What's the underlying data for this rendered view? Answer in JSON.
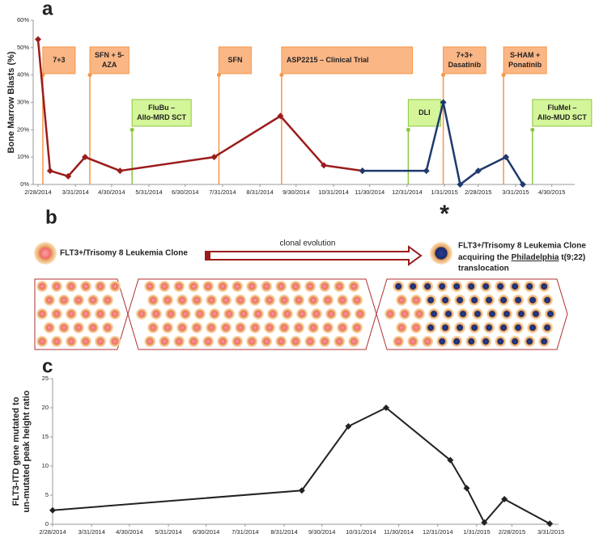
{
  "panel_labels": [
    "a",
    "b",
    "c"
  ],
  "chart_data": [
    {
      "type": "line",
      "ylabel": "Bone Marrow Blasts (%)",
      "xlim": [
        "2/24/2014",
        "5/19/2015"
      ],
      "xticks": [
        "2/28/2014",
        "3/31/2014",
        "4/30/2014",
        "5/31/2014",
        "6/30/2014",
        "7/31/2014",
        "8/31/2014",
        "9/30/2014",
        "10/31/2014",
        "11/30/2014",
        "12/31/2014",
        "1/31/2015",
        "2/28/2015",
        "3/31/2015",
        "4/30/2015"
      ],
      "ylim": [
        0,
        60
      ],
      "yticks": [
        {
          "value": 0,
          "label": "0%"
        },
        {
          "value": 10,
          "label": "10%"
        },
        {
          "value": 20,
          "label": "20%"
        },
        {
          "value": 30,
          "label": "30%"
        },
        {
          "value": 40,
          "label": "40%"
        },
        {
          "value": 50,
          "label": "50%"
        },
        {
          "value": 60,
          "label": "60%"
        }
      ],
      "series": [
        {
          "color": "#9b1c1c",
          "x": [
            "2/28/2014",
            "3/10/2014",
            "3/25/2014",
            "4/8/2014",
            "5/7/2014",
            "7/24/2014",
            "9/17/2014",
            "10/23/2014",
            "11/24/2014"
          ],
          "values": [
            53,
            5,
            3,
            10,
            5,
            10,
            25,
            7,
            5
          ]
        },
        {
          "color": "#1f3a6e",
          "x": [
            "11/24/2014",
            "1/16/2015",
            "1/30/2015",
            "2/13/2015",
            "2/28/2015",
            "3/23/2015",
            "4/6/2015"
          ],
          "values": [
            5,
            5,
            30,
            0,
            5,
            10,
            0
          ]
        }
      ],
      "annotations": [
        {
          "color": "#f79646",
          "items": [
            {
              "x": "3/4/2014",
              "lines": [
                "7+3"
              ]
            },
            {
              "x": "4/12/2014",
              "lines": [
                "SFN + 5-",
                "AZA"
              ]
            },
            {
              "x": "7/28/2014",
              "lines": [
                "SFN"
              ]
            },
            {
              "x": "9/18/2014",
              "lines": [
                "ASP2215 – Clinical Trial"
              ]
            },
            {
              "x": "1/30/2015",
              "lines": [
                "7+3+",
                "Dasatinib"
              ]
            },
            {
              "x": "3/21/2015",
              "lines": [
                "S-HAM +",
                "Ponatinib"
              ]
            }
          ]
        },
        {
          "color": "#8cc63f",
          "items": [
            {
              "x": "5/17/2014",
              "lines": [
                "FluBu –",
                "Allo-MRD SCT"
              ]
            },
            {
              "x": "1/1/2015",
              "lines": [
                "DLI"
              ]
            },
            {
              "x": "4/14/2015",
              "lines": [
                "FluMel –",
                "Allo-MUD SCT"
              ]
            }
          ]
        }
      ],
      "marker_note": {
        "x": "1/31/2015",
        "text": "*"
      }
    },
    {
      "type": "line",
      "ylabel": [
        "FLT3-ITD gene mutated to",
        "un-mutated peak height ratio"
      ],
      "xlim": [
        "2/28/2014",
        "4/6/2015"
      ],
      "xticks": [
        "2/28/2014",
        "3/31/2014",
        "4/30/2014",
        "5/31/2014",
        "6/30/2014",
        "7/31/2014",
        "8/31/2014",
        "9/30/2014",
        "10/31/2014",
        "11/30/2014",
        "12/31/2014",
        "1/31/2015",
        "2/28/2015",
        "3/31/2015"
      ],
      "ylim": [
        0,
        25
      ],
      "yticks": [
        0,
        5,
        10,
        15,
        20,
        25
      ],
      "series": [
        {
          "color": "#222222",
          "x": [
            "2/28/2014",
            "9/14/2014",
            "10/21/2014",
            "11/20/2014",
            "1/10/2015",
            "1/23/2015",
            "2/6/2015",
            "2/22/2015",
            "3/30/2015"
          ],
          "values": [
            2.4,
            5.8,
            16.8,
            20,
            11,
            6.2,
            0.3,
            4.3,
            0.1
          ]
        }
      ]
    }
  ],
  "diagram": {
    "left_clone": "FLT3+/Trisomy 8 Leukemia Clone",
    "arrow": "clonal evolution",
    "right_clone": {
      "line1": "FLT3+/Trisomy 8 Leukemia Clone",
      "line2": [
        "acquiring the ",
        "Philadelphia",
        " t(9;22)"
      ],
      "line3": "translocation"
    }
  }
}
